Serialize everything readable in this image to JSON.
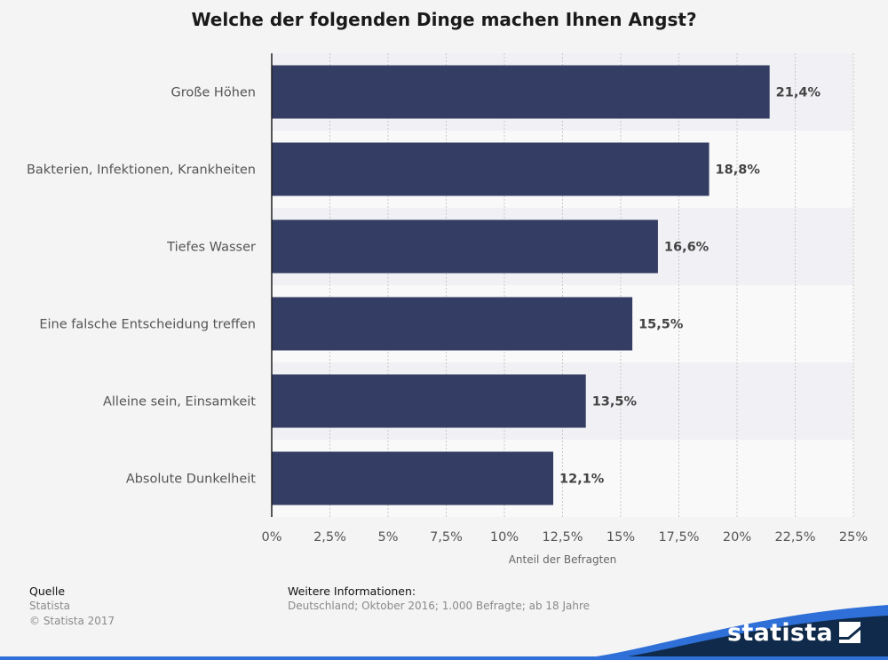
{
  "chart_data": {
    "type": "bar",
    "orientation": "horizontal",
    "title": "Welche der folgenden Dinge machen Ihnen Angst?",
    "categories": [
      "Große Höhen",
      "Bakterien, Infektionen, Krankheiten",
      "Tiefes Wasser",
      "Eine falsche Entscheidung treffen",
      "Alleine sein, Einsamkeit",
      "Absolute Dunkelheit"
    ],
    "values": [
      21.4,
      18.8,
      16.6,
      15.5,
      13.5,
      12.1
    ],
    "value_labels": [
      "21,4%",
      "18,8%",
      "16,6%",
      "15,5%",
      "13,5%",
      "12,1%"
    ],
    "xlabel": "Anteil der Befragten",
    "ylabel": "",
    "xlim": [
      0,
      25
    ],
    "xticks": [
      0,
      2.5,
      5,
      7.5,
      10,
      12.5,
      15,
      17.5,
      20,
      22.5,
      25
    ],
    "xtick_labels": [
      "0%",
      "2,5%",
      "5%",
      "7,5%",
      "10%",
      "12,5%",
      "15%",
      "17,5%",
      "20%",
      "22,5%",
      "25%"
    ],
    "grid": true,
    "bar_color": "#343d63"
  },
  "footer": {
    "source_heading": "Quelle",
    "source_name": "Statista",
    "copyright": "© Statista 2017",
    "info_heading": "Weitere Informationen:",
    "info_text": "Deutschland; Oktober 2016; 1.000 Befragte; ab 18 Jahre"
  },
  "branding": {
    "logo_text": "statista",
    "logo_icon": "statista-flag-icon",
    "colors": {
      "dark": "#0f2a4a",
      "accent": "#2f6fd8"
    }
  }
}
